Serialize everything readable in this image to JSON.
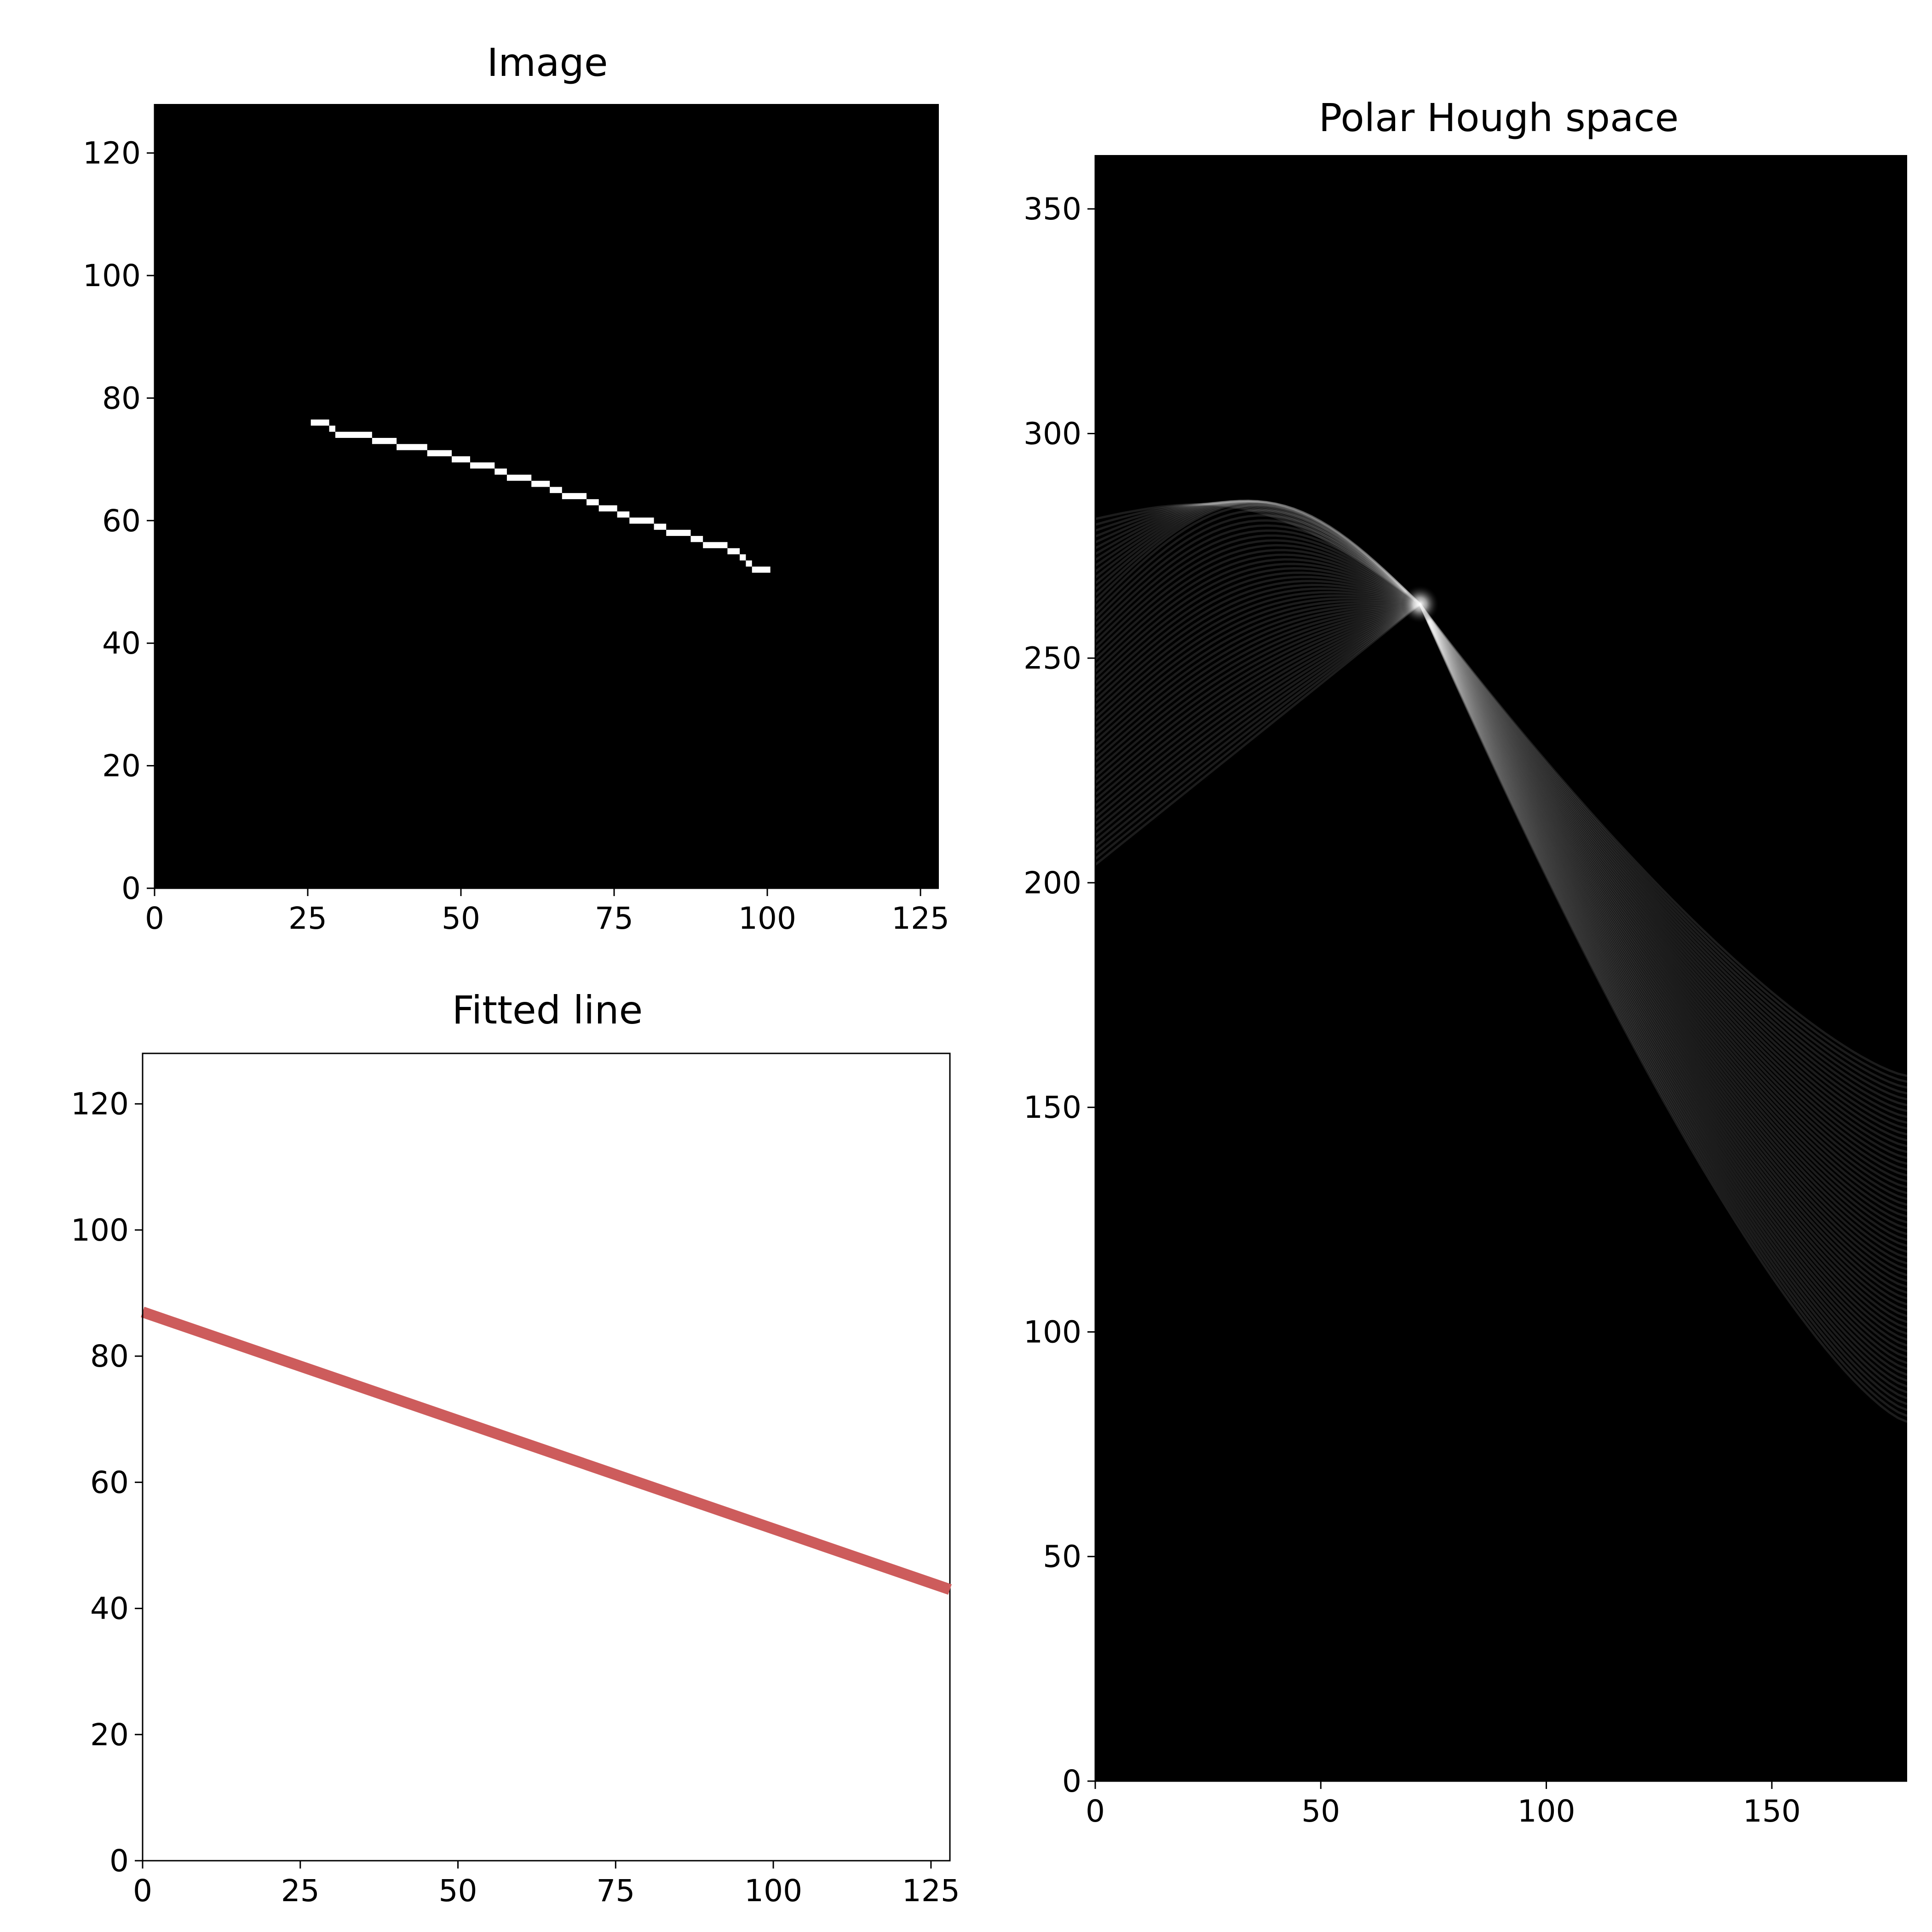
{
  "chart_data": [
    {
      "type": "heatmap",
      "title": "Image",
      "xlim": [
        0,
        128
      ],
      "ylim": [
        128,
        0
      ],
      "x_ticks": [
        "0",
        "25",
        "50",
        "75",
        "100",
        "125"
      ],
      "y_ticks": [
        "0",
        "20",
        "40",
        "60",
        "80",
        "100",
        "120"
      ],
      "colormap": "gray",
      "pixel_steps": [
        {
          "x0": 26,
          "x1": 28,
          "y": 76
        },
        {
          "x0": 29,
          "x1": 29,
          "y": 75
        },
        {
          "x0": 30,
          "x1": 35,
          "y": 74
        },
        {
          "x0": 36,
          "x1": 39,
          "y": 73
        },
        {
          "x0": 40,
          "x1": 44,
          "y": 72
        },
        {
          "x0": 45,
          "x1": 48,
          "y": 71
        },
        {
          "x0": 49,
          "x1": 51,
          "y": 70
        },
        {
          "x0": 52,
          "x1": 55,
          "y": 69
        },
        {
          "x0": 56,
          "x1": 57,
          "y": 68
        },
        {
          "x0": 58,
          "x1": 61,
          "y": 67
        },
        {
          "x0": 62,
          "x1": 64,
          "y": 66
        },
        {
          "x0": 65,
          "x1": 66,
          "y": 65
        },
        {
          "x0": 67,
          "x1": 70,
          "y": 64
        },
        {
          "x0": 71,
          "x1": 72,
          "y": 63
        },
        {
          "x0": 73,
          "x1": 75,
          "y": 62
        },
        {
          "x0": 76,
          "x1": 77,
          "y": 61
        },
        {
          "x0": 78,
          "x1": 81,
          "y": 60
        },
        {
          "x0": 82,
          "x1": 83,
          "y": 59
        },
        {
          "x0": 84,
          "x1": 87,
          "y": 58
        },
        {
          "x0": 88,
          "x1": 89,
          "y": 57
        },
        {
          "x0": 90,
          "x1": 93,
          "y": 56
        },
        {
          "x0": 94,
          "x1": 95,
          "y": 55
        },
        {
          "x0": 96,
          "x1": 96,
          "y": 54
        },
        {
          "x0": 97,
          "x1": 97,
          "y": 53
        },
        {
          "x0": 98,
          "x1": 100,
          "y": 52
        }
      ]
    },
    {
      "type": "line",
      "title": "Fitted line",
      "xlim": [
        0,
        128
      ],
      "ylim": [
        128,
        0
      ],
      "x_ticks": [
        "0",
        "25",
        "50",
        "75",
        "100",
        "125"
      ],
      "y_ticks": [
        "0",
        "20",
        "40",
        "60",
        "80",
        "100",
        "120"
      ],
      "line_color": "#cd5c5c",
      "x": [
        0,
        128
      ],
      "y": [
        87,
        43
      ]
    },
    {
      "type": "heatmap",
      "title": "Polar Hough space",
      "xlim": [
        0,
        180
      ],
      "ylim": [
        362,
        0
      ],
      "x_ticks": [
        "0",
        "50",
        "100",
        "150"
      ],
      "y_ticks": [
        "0",
        "50",
        "100",
        "150",
        "200",
        "250",
        "300",
        "350"
      ],
      "colormap": "gray",
      "peak": {
        "theta": 72,
        "rho": 262
      },
      "curve_band": {
        "theta_start": 0,
        "theta_end": 180,
        "rho_first_min": 204,
        "rho_first_max": 281,
        "rho_last_min": 80,
        "rho_last_max": 157,
        "lowest_rho": 292,
        "lowest_theta": 30
      }
    }
  ]
}
